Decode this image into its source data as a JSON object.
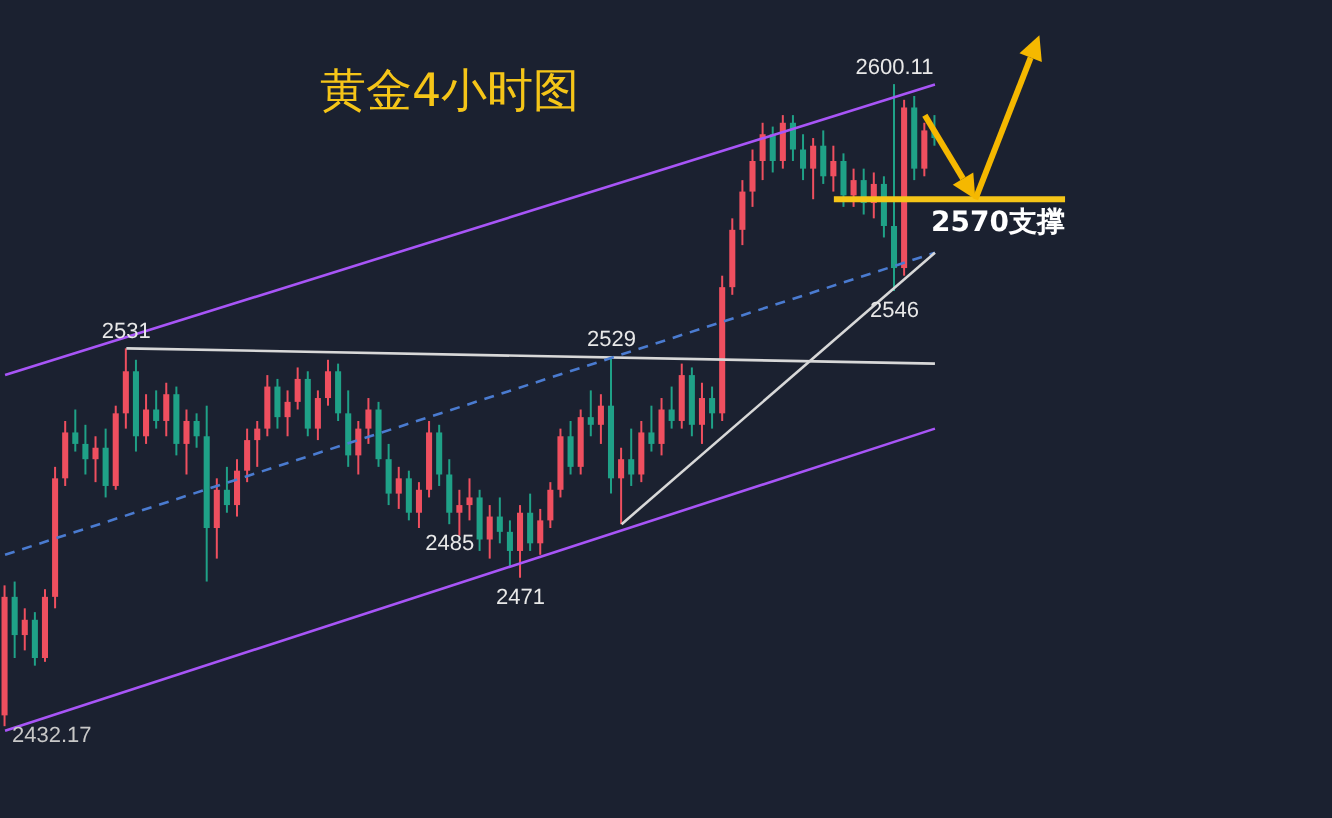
{
  "chart_data": {
    "type": "candlestick",
    "title": "黄金4小时图",
    "categories": [
      null,
      null,
      null,
      null,
      null,
      null,
      null,
      null,
      null,
      null,
      null,
      null,
      null,
      null,
      null,
      null,
      null,
      null,
      null,
      null,
      null,
      null,
      null,
      null,
      null,
      null,
      null,
      null,
      null,
      null,
      null,
      null,
      null,
      null,
      null,
      null,
      null,
      null,
      null,
      null,
      null,
      null,
      null,
      null,
      null,
      null,
      null,
      null,
      null,
      null,
      null,
      null,
      null,
      null,
      null,
      null,
      null,
      null,
      null,
      null,
      null,
      null,
      null,
      null,
      null,
      null,
      null,
      null,
      null,
      null,
      null,
      null,
      null,
      null,
      null,
      null,
      null,
      null,
      null,
      null,
      null,
      null,
      null,
      null,
      null,
      null,
      null,
      null,
      null,
      null,
      null,
      null,
      null
    ],
    "ohlc": [
      [
        2435,
        2469,
        2432.17,
        2466
      ],
      [
        2466,
        2470,
        2450,
        2456
      ],
      [
        2456,
        2463,
        2452,
        2460
      ],
      [
        2460,
        2462,
        2448,
        2450
      ],
      [
        2450,
        2468,
        2449,
        2466
      ],
      [
        2466,
        2500,
        2463,
        2497
      ],
      [
        2497,
        2512,
        2495,
        2509
      ],
      [
        2509,
        2515,
        2504,
        2506
      ],
      [
        2506,
        2511,
        2498,
        2502
      ],
      [
        2502,
        2508,
        2496,
        2505
      ],
      [
        2505,
        2510,
        2492,
        2495
      ],
      [
        2495,
        2516,
        2494,
        2514
      ],
      [
        2514,
        2531,
        2510,
        2525
      ],
      [
        2525,
        2528,
        2504,
        2508
      ],
      [
        2508,
        2519,
        2506,
        2515
      ],
      [
        2515,
        2520,
        2510,
        2512
      ],
      [
        2512,
        2522,
        2508,
        2519
      ],
      [
        2519,
        2521,
        2503,
        2506
      ],
      [
        2506,
        2515,
        2498,
        2512
      ],
      [
        2512,
        2514,
        2505,
        2508
      ],
      [
        2508,
        2516,
        2470,
        2484
      ],
      [
        2484,
        2497,
        2476,
        2494
      ],
      [
        2494,
        2500,
        2488,
        2490
      ],
      [
        2490,
        2502,
        2487,
        2499
      ],
      [
        2499,
        2510,
        2496,
        2507
      ],
      [
        2507,
        2512,
        2500,
        2510
      ],
      [
        2510,
        2524,
        2508,
        2521
      ],
      [
        2521,
        2523,
        2510,
        2513
      ],
      [
        2513,
        2520,
        2508,
        2517
      ],
      [
        2517,
        2526,
        2515,
        2523
      ],
      [
        2523,
        2525,
        2508,
        2510
      ],
      [
        2510,
        2520,
        2507,
        2518
      ],
      [
        2518,
        2528,
        2516,
        2525
      ],
      [
        2525,
        2527,
        2512,
        2514
      ],
      [
        2514,
        2520,
        2500,
        2503
      ],
      [
        2503,
        2512,
        2498,
        2510
      ],
      [
        2510,
        2518,
        2506,
        2515
      ],
      [
        2515,
        2517,
        2500,
        2502
      ],
      [
        2502,
        2506,
        2490,
        2493
      ],
      [
        2493,
        2500,
        2489,
        2497
      ],
      [
        2497,
        2499,
        2486,
        2488
      ],
      [
        2488,
        2496,
        2484,
        2494
      ],
      [
        2494,
        2512,
        2492,
        2509
      ],
      [
        2509,
        2511,
        2495,
        2498
      ],
      [
        2498,
        2502,
        2485,
        2488
      ],
      [
        2488,
        2494,
        2482,
        2490
      ],
      [
        2490,
        2497,
        2486,
        2492
      ],
      [
        2492,
        2494,
        2478,
        2481
      ],
      [
        2481,
        2490,
        2476,
        2487
      ],
      [
        2487,
        2492,
        2480,
        2483
      ],
      [
        2483,
        2486,
        2474,
        2478
      ],
      [
        2478,
        2490,
        2471,
        2488
      ],
      [
        2488,
        2493,
        2478,
        2480
      ],
      [
        2480,
        2489,
        2477,
        2486
      ],
      [
        2486,
        2496,
        2484,
        2494
      ],
      [
        2494,
        2510,
        2492,
        2508
      ],
      [
        2508,
        2512,
        2498,
        2500
      ],
      [
        2500,
        2515,
        2498,
        2513
      ],
      [
        2513,
        2520,
        2508,
        2511
      ],
      [
        2511,
        2519,
        2506,
        2516
      ],
      [
        2516,
        2529,
        2493,
        2497
      ],
      [
        2497,
        2505,
        2485,
        2502
      ],
      [
        2502,
        2510,
        2495,
        2498
      ],
      [
        2498,
        2512,
        2496,
        2509
      ],
      [
        2509,
        2516,
        2504,
        2506
      ],
      [
        2506,
        2518,
        2503,
        2515
      ],
      [
        2515,
        2521,
        2510,
        2512
      ],
      [
        2512,
        2527,
        2510,
        2524
      ],
      [
        2524,
        2526,
        2508,
        2511
      ],
      [
        2511,
        2522,
        2506,
        2518
      ],
      [
        2518,
        2521,
        2510,
        2514
      ],
      [
        2514,
        2550,
        2512,
        2547
      ],
      [
        2547,
        2565,
        2545,
        2562
      ],
      [
        2562,
        2575,
        2558,
        2572
      ],
      [
        2572,
        2583,
        2568,
        2580
      ],
      [
        2580,
        2590,
        2575,
        2587
      ],
      [
        2587,
        2589,
        2577,
        2580
      ],
      [
        2580,
        2592,
        2578,
        2590
      ],
      [
        2590,
        2592,
        2580,
        2583
      ],
      [
        2583,
        2587,
        2575,
        2578
      ],
      [
        2578,
        2586,
        2570,
        2584
      ],
      [
        2584,
        2588,
        2574,
        2576
      ],
      [
        2576,
        2584,
        2572,
        2580
      ],
      [
        2580,
        2582,
        2568,
        2571
      ],
      [
        2571,
        2578,
        2568,
        2575
      ],
      [
        2575,
        2578,
        2566,
        2569
      ],
      [
        2569,
        2577,
        2565,
        2574
      ],
      [
        2574,
        2576,
        2560,
        2563
      ],
      [
        2563,
        2600.11,
        2546,
        2552
      ],
      [
        2552,
        2596,
        2550,
        2594
      ],
      [
        2594,
        2597,
        2575,
        2578
      ],
      [
        2578,
        2590,
        2576,
        2588
      ],
      [
        2588,
        2592,
        2584,
        2586
      ]
    ],
    "colors": [
      "#ef4f5f",
      "#1fa187",
      "#ef4f5f",
      "#1fa187",
      "#ef4f5f",
      "#ef4f5f",
      "#ef4f5f",
      "#1fa187",
      "#1fa187",
      "#ef4f5f",
      "#1fa187",
      "#ef4f5f",
      "#ef4f5f",
      "#1fa187",
      "#ef4f5f",
      "#1fa187",
      "#ef4f5f",
      "#1fa187",
      "#ef4f5f",
      "#1fa187",
      "#1fa187",
      "#ef4f5f",
      "#1fa187",
      "#ef4f5f",
      "#ef4f5f",
      "#ef4f5f",
      "#ef4f5f",
      "#1fa187",
      "#ef4f5f",
      "#ef4f5f",
      "#1fa187",
      "#ef4f5f",
      "#ef4f5f",
      "#1fa187",
      "#1fa187",
      "#ef4f5f",
      "#ef4f5f",
      "#1fa187",
      "#1fa187",
      "#ef4f5f",
      "#1fa187",
      "#ef4f5f",
      "#ef4f5f",
      "#1fa187",
      "#1fa187",
      "#ef4f5f",
      "#ef4f5f",
      "#1fa187",
      "#ef4f5f",
      "#1fa187",
      "#1fa187",
      "#ef4f5f",
      "#1fa187",
      "#ef4f5f",
      "#ef4f5f",
      "#ef4f5f",
      "#1fa187",
      "#ef4f5f",
      "#1fa187",
      "#ef4f5f",
      "#1fa187",
      "#ef4f5f",
      "#1fa187",
      "#ef4f5f",
      "#1fa187",
      "#ef4f5f",
      "#1fa187",
      "#ef4f5f",
      "#1fa187",
      "#ef4f5f",
      "#1fa187",
      "#ef4f5f",
      "#ef4f5f",
      "#ef4f5f",
      "#ef4f5f",
      "#ef4f5f",
      "#1fa187",
      "#ef4f5f",
      "#1fa187",
      "#1fa187",
      "#ef4f5f",
      "#1fa187",
      "#ef4f5f",
      "#1fa187",
      "#ef4f5f",
      "#1fa187",
      "#ef4f5f",
      "#1fa187",
      "#1fa187",
      "#ef4f5f",
      "#1fa187",
      "#ef4f5f",
      "#1fa187"
    ],
    "series": [
      {
        "type": "line",
        "color": "#a855f7",
        "values": [
          2524,
          null,
          null,
          null,
          null,
          null,
          null,
          null,
          null,
          null,
          null,
          null,
          null,
          null,
          null,
          null,
          null,
          null,
          null,
          null,
          null,
          null,
          null,
          null,
          null,
          null,
          null,
          null,
          null,
          null,
          null,
          null,
          null,
          null,
          null,
          null,
          null,
          null,
          null,
          null,
          null,
          null,
          null,
          null,
          null,
          null,
          null,
          null,
          null,
          null,
          null,
          null,
          null,
          null,
          null,
          null,
          null,
          null,
          null,
          null,
          null,
          null,
          null,
          null,
          null,
          null,
          null,
          null,
          null,
          null,
          null,
          null,
          null,
          null,
          null,
          null,
          null,
          null,
          null,
          null,
          null,
          null,
          null,
          null,
          null,
          null,
          null,
          null,
          null,
          null,
          null,
          null,
          2600
        ]
      },
      {
        "type": "line",
        "color": "#a855f7",
        "values": [
          2431,
          null,
          null,
          null,
          null,
          null,
          null,
          null,
          null,
          null,
          null,
          null,
          null,
          null,
          null,
          null,
          null,
          null,
          null,
          null,
          null,
          null,
          null,
          null,
          null,
          null,
          null,
          null,
          null,
          null,
          null,
          null,
          null,
          null,
          null,
          null,
          null,
          null,
          null,
          null,
          null,
          null,
          null,
          null,
          null,
          null,
          null,
          null,
          null,
          null,
          null,
          null,
          null,
          null,
          null,
          null,
          null,
          null,
          null,
          null,
          null,
          null,
          null,
          null,
          null,
          null,
          null,
          null,
          null,
          null,
          null,
          null,
          null,
          null,
          null,
          null,
          null,
          null,
          null,
          null,
          null,
          null,
          null,
          null,
          null,
          null,
          null,
          null,
          null,
          null,
          null,
          null,
          2510
        ]
      },
      {
        "type": "line",
        "color": "#d8d8d8",
        "values": [
          null,
          null,
          null,
          null,
          null,
          null,
          null,
          null,
          null,
          null,
          null,
          null,
          2531,
          null,
          null,
          null,
          null,
          null,
          null,
          null,
          null,
          null,
          null,
          null,
          null,
          null,
          null,
          null,
          null,
          null,
          null,
          null,
          null,
          null,
          null,
          null,
          null,
          null,
          null,
          null,
          null,
          null,
          null,
          null,
          null,
          null,
          null,
          null,
          null,
          null,
          null,
          null,
          null,
          null,
          null,
          null,
          null,
          null,
          null,
          null,
          null,
          null,
          null,
          null,
          null,
          null,
          null,
          null,
          null,
          null,
          null,
          null,
          null,
          null,
          null,
          null,
          null,
          null,
          null,
          null,
          null,
          null,
          null,
          null,
          null,
          null,
          null,
          null,
          null,
          null,
          null,
          null,
          2527
        ]
      },
      {
        "type": "line",
        "color": "#4a7bd0",
        "line_style": "dashed",
        "values": [
          2477,
          null,
          null,
          null,
          null,
          null,
          null,
          null,
          null,
          null,
          null,
          null,
          null,
          null,
          null,
          null,
          null,
          null,
          null,
          null,
          null,
          null,
          null,
          null,
          null,
          null,
          null,
          null,
          null,
          null,
          null,
          null,
          null,
          null,
          null,
          null,
          null,
          null,
          null,
          null,
          null,
          null,
          null,
          null,
          null,
          null,
          null,
          null,
          null,
          null,
          null,
          null,
          null,
          null,
          null,
          null,
          null,
          null,
          null,
          null,
          null,
          null,
          null,
          null,
          null,
          null,
          null,
          null,
          null,
          null,
          null,
          null,
          null,
          null,
          null,
          null,
          null,
          null,
          null,
          null,
          null,
          null,
          null,
          null,
          null,
          null,
          null,
          null,
          null,
          null,
          null,
          null,
          2556
        ]
      },
      {
        "type": "line",
        "color": "#d8d8d8",
        "values": [
          null,
          null,
          null,
          null,
          null,
          null,
          null,
          null,
          null,
          null,
          null,
          null,
          null,
          null,
          null,
          null,
          null,
          null,
          null,
          null,
          null,
          null,
          null,
          null,
          null,
          null,
          null,
          null,
          null,
          null,
          null,
          null,
          null,
          null,
          null,
          null,
          null,
          null,
          null,
          null,
          null,
          null,
          null,
          null,
          null,
          null,
          null,
          null,
          null,
          null,
          null,
          null,
          null,
          null,
          null,
          null,
          null,
          null,
          null,
          null,
          null,
          2485,
          null,
          null,
          null,
          null,
          null,
          null,
          null,
          null,
          null,
          null,
          null,
          null,
          null,
          null,
          null,
          null,
          null,
          null,
          null,
          null,
          null,
          null,
          null,
          null,
          null,
          null,
          null,
          null,
          null,
          null,
          2556
        ]
      }
    ],
    "ref_lines": [
      {
        "axis": "y",
        "value": 2570,
        "label": "2570支撑",
        "color": "#f5c518"
      }
    ],
    "annotations": [
      {
        "text": "2531",
        "y": 2531
      },
      {
        "text": "2529",
        "y": 2529
      },
      {
        "text": "2485",
        "y": 2485
      },
      {
        "text": "2471",
        "y": 2471
      },
      {
        "text": "2546",
        "y": 2546
      },
      {
        "text": "2600.11",
        "y": 2600.11
      },
      "2432.17"
    ]
  }
}
